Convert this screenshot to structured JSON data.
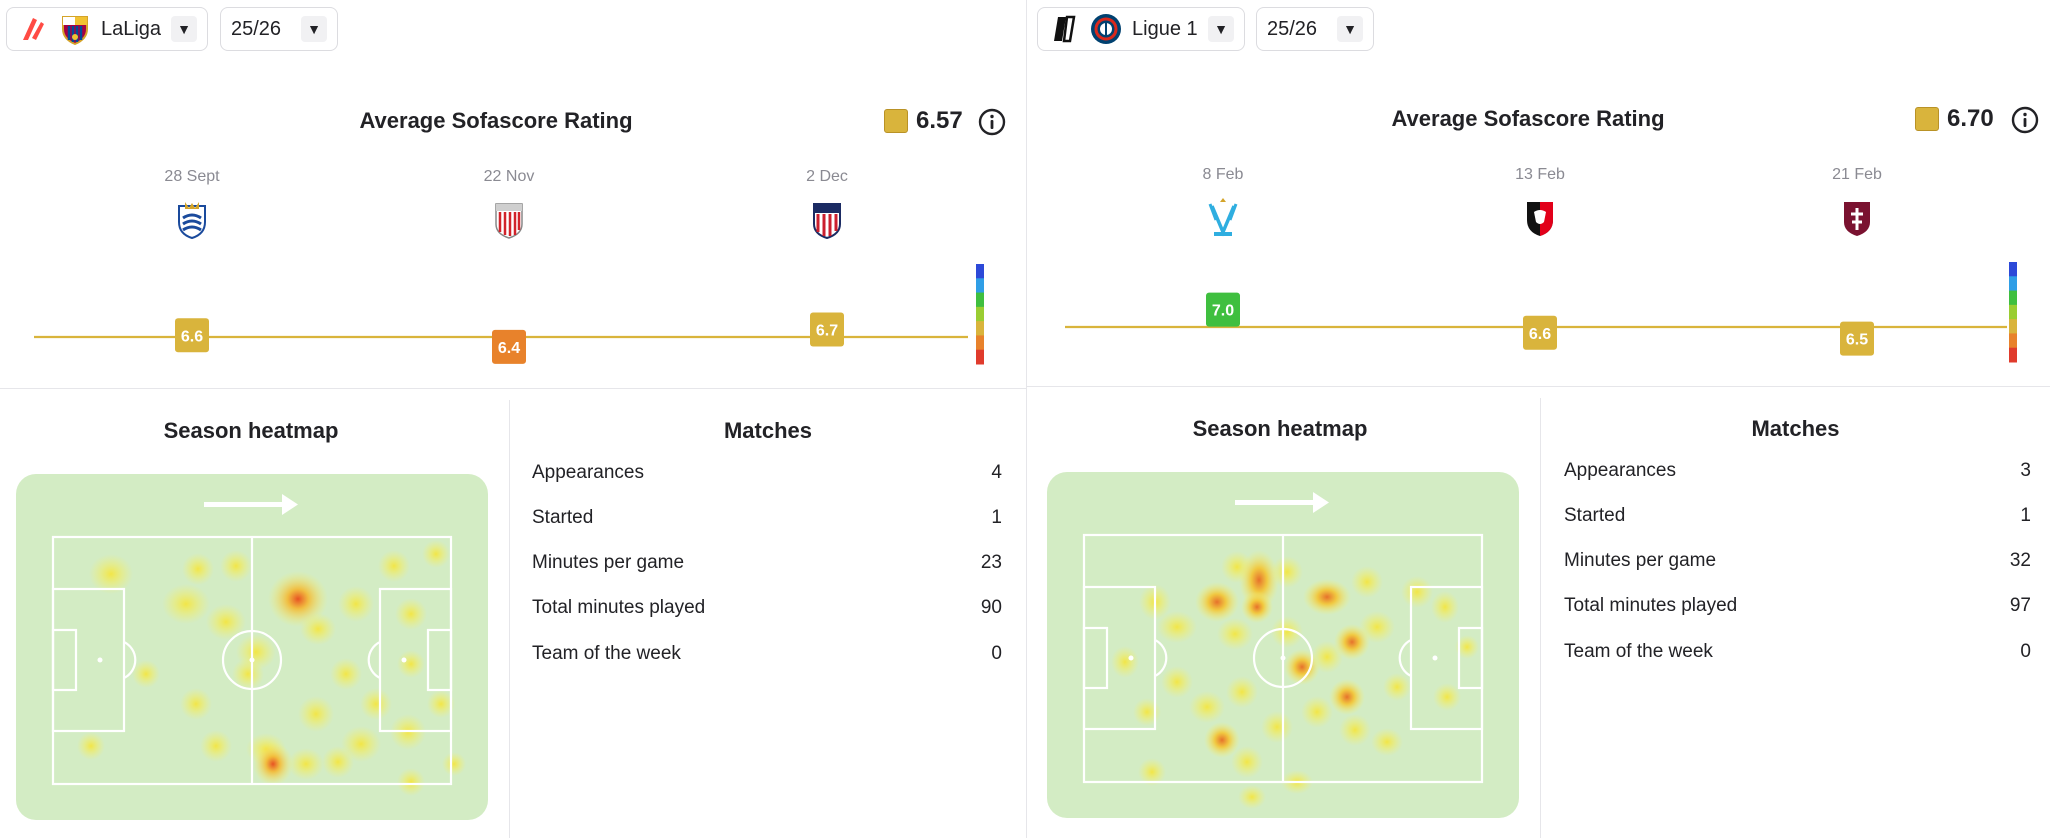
{
  "panels": [
    {
      "competition": {
        "name": "LaLiga",
        "league_logo": "laliga-icon",
        "team_logo": "fc-barcelona-crest-icon"
      },
      "season": {
        "value": "25/26"
      },
      "rating": {
        "title": "Average Sofascore Rating",
        "average": "6.57",
        "matches": [
          {
            "date": "28 Sept",
            "opponent_crest": "real-sociedad-crest-icon",
            "rating": 6.6,
            "label": "6.6",
            "color": "#d9b43c"
          },
          {
            "date": "22 Nov",
            "opponent_crest": "athletic-club-crest-icon",
            "rating": 6.4,
            "label": "6.4",
            "color": "#e8822b"
          },
          {
            "date": "2 Dec",
            "opponent_crest": "atletico-madrid-crest-icon",
            "rating": 6.7,
            "label": "6.7",
            "color": "#d9b43c"
          }
        ]
      },
      "heatmap": {
        "title": "Season heatmap",
        "direction_icon": "attack-direction-arrow-icon"
      },
      "matches_stats": {
        "title": "Matches",
        "rows": [
          {
            "label": "Appearances",
            "value": "4"
          },
          {
            "label": "Started",
            "value": "1"
          },
          {
            "label": "Minutes per game",
            "value": "23"
          },
          {
            "label": "Total minutes played",
            "value": "90"
          },
          {
            "label": "Team of the week",
            "value": "0"
          }
        ]
      }
    },
    {
      "competition": {
        "name": "Ligue 1",
        "league_logo": "ligue1-icon",
        "team_logo": "psg-crest-icon"
      },
      "season": {
        "value": "25/26"
      },
      "rating": {
        "title": "Average Sofascore Rating",
        "average": "6.70",
        "matches": [
          {
            "date": "8 Feb",
            "opponent_crest": "marseille-crest-icon",
            "rating": 7.0,
            "label": "7.0",
            "color": "#3fbf3f"
          },
          {
            "date": "13 Feb",
            "opponent_crest": "rennes-crest-icon",
            "rating": 6.6,
            "label": "6.6",
            "color": "#d9b43c"
          },
          {
            "date": "21 Feb",
            "opponent_crest": "metz-crest-icon",
            "rating": 6.5,
            "label": "6.5",
            "color": "#d9b43c"
          }
        ]
      },
      "heatmap": {
        "title": "Season heatmap",
        "direction_icon": "attack-direction-arrow-icon"
      },
      "matches_stats": {
        "title": "Matches",
        "rows": [
          {
            "label": "Appearances",
            "value": "3"
          },
          {
            "label": "Started",
            "value": "1"
          },
          {
            "label": "Minutes per game",
            "value": "32"
          },
          {
            "label": "Total minutes played",
            "value": "97"
          },
          {
            "label": "Team of the week",
            "value": "0"
          }
        ]
      }
    }
  ],
  "rating_scale_colors": [
    "#2c49d8",
    "#2f9ee6",
    "#3fbf3f",
    "#9acd32",
    "#d9b43c",
    "#e8822b",
    "#e03b2c"
  ],
  "theme": {
    "average_line": "#d9b43c",
    "pitch_fill": "#d3ecc4"
  }
}
